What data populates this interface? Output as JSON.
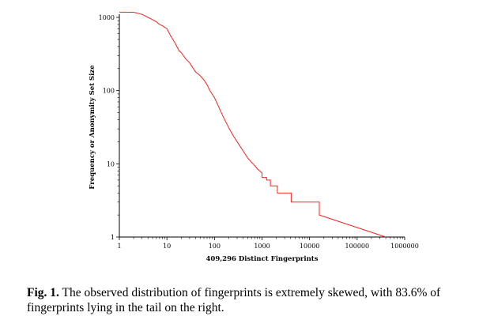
{
  "chart_data": {
    "type": "line",
    "title": "",
    "xlabel": "409,296 Distinct Fingerprints",
    "ylabel": "Frequency or Anonymity Set Size",
    "x_scale": "log",
    "y_scale": "log",
    "xlim": [
      1,
      1000000
    ],
    "ylim": [
      1,
      1000
    ],
    "x_ticks": [
      "1",
      "10",
      "100",
      "1000",
      "10000",
      "100000",
      "1000000"
    ],
    "y_ticks": [
      "1",
      "10",
      "100",
      "1000"
    ],
    "grid": false,
    "legend": "none",
    "series": [
      {
        "color": "#ff2020",
        "x": [
          1,
          2,
          3,
          4,
          5,
          6,
          7,
          8,
          10,
          12,
          15,
          18,
          20,
          25,
          30,
          40,
          50,
          60,
          70,
          80,
          100,
          120,
          150,
          200,
          250,
          300,
          400,
          500,
          600,
          700,
          800,
          1000,
          1000,
          1250,
          1250,
          1500,
          1500,
          2100,
          2100,
          4100,
          4100,
          16000,
          16000,
          400000
        ],
        "y": [
          1180,
          1175,
          1100,
          1000,
          930,
          870,
          800,
          770,
          700,
          560,
          440,
          350,
          330,
          270,
          240,
          180,
          160,
          140,
          120,
          100,
          80,
          62,
          45,
          31,
          24,
          20,
          15,
          12,
          10.5,
          9.5,
          8.5,
          7.5,
          6.5,
          6.5,
          6,
          6,
          5,
          5,
          4,
          4,
          3,
          3,
          2,
          1
        ]
      }
    ]
  },
  "caption": {
    "label": "Fig. 1.",
    "text": "The observed distribution of fingerprints is extremely skewed, with 83.6% of fingerprints lying in the tail on the right."
  }
}
